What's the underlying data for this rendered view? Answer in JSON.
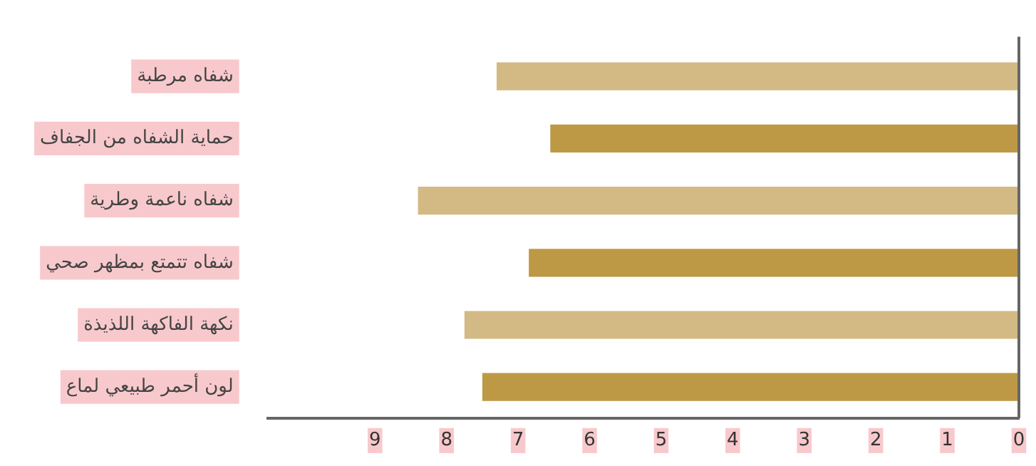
{
  "chart_data": {
    "type": "bar",
    "orientation": "horizontal",
    "categories": [
      "شفاه مرطبة",
      "حماية الشفاه من الجفاف",
      "شفاه ناعمة وطرية",
      "شفاه تتمتع بمظهر صحي",
      "نكهة الفاكهة اللذيذة",
      "لون أحمر طبيعي لماع"
    ],
    "values": [
      7.3,
      6.55,
      8.4,
      6.85,
      7.75,
      7.5
    ],
    "colors": [
      "#d3ba84",
      "#bd9945",
      "#d3ba84",
      "#bd9945",
      "#d3ba84",
      "#bd9945"
    ],
    "xlim": [
      10.5,
      0
    ],
    "xticks": [
      0,
      1,
      2,
      3,
      4,
      5,
      6,
      7,
      8,
      9
    ],
    "grid": false,
    "legend": false
  }
}
